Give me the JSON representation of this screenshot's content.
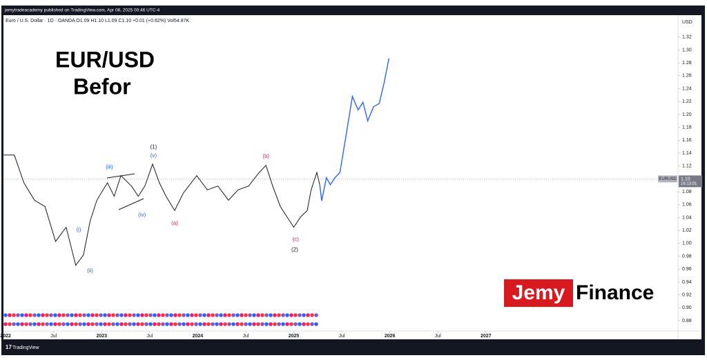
{
  "chart_data": {
    "type": "line",
    "published": "jemytradeacademy published on TradingView.com, Apr 08, 2025 00:46 UTC-4",
    "legend": "Euro / U.S. Dollar · 1D · OANDA  O1.09  H1.10  L1.09  C1.10  +0.01 (+0.62%)  Vol54.87K",
    "title": "EUR/USD",
    "subtitle": "Befor",
    "axis_unit": "USD",
    "brand": [
      "Jemy",
      "Finance"
    ],
    "footer": "TradingView",
    "last_price": {
      "value": 1.1,
      "label": "1.10"
    },
    "countdown": "16:13:01",
    "series": [
      {
        "name": "EURUSD",
        "color": "#131722",
        "x": [
          2021.98,
          2022.09,
          2022.19,
          2022.3,
          2022.41,
          2022.52,
          2022.63,
          2022.73,
          2022.81,
          2022.88,
          2022.95,
          2023.06,
          2023.13,
          2023.2,
          2023.31,
          2023.38,
          2023.45,
          2023.53,
          2023.6,
          2023.67,
          2023.76,
          2023.85,
          2023.99,
          2024.1,
          2024.21,
          2024.32,
          2024.42,
          2024.53,
          2024.64,
          2024.71,
          2024.78,
          2024.86,
          2024.93,
          2025.0,
          2025.07,
          2025.14,
          2025.18,
          2025.24,
          2025.27
        ],
        "values": [
          1.137,
          1.137,
          1.094,
          1.067,
          1.057,
          1.003,
          1.025,
          0.966,
          0.982,
          1.035,
          1.067,
          1.094,
          1.073,
          1.105,
          1.089,
          1.073,
          1.089,
          1.123,
          1.094,
          1.073,
          1.051,
          1.078,
          1.105,
          1.083,
          1.089,
          1.067,
          1.083,
          1.089,
          1.11,
          1.121,
          1.089,
          1.057,
          1.041,
          1.025,
          1.041,
          1.051,
          1.083,
          1.11,
          1.091
        ]
      },
      {
        "color": "#2962ff",
        "x": [
          2025.27,
          2025.29,
          2025.34,
          2025.38,
          2025.43,
          2025.48,
          2025.54,
          2025.61,
          2025.67,
          2025.72,
          2025.77,
          2025.83,
          2025.89,
          2025.94,
          2025.99
        ],
        "values": [
          1.091,
          1.066,
          1.102,
          1.091,
          1.102,
          1.11,
          1.164,
          1.228,
          1.207,
          1.219,
          1.19,
          1.212,
          1.217,
          1.249,
          1.287
        ]
      }
    ],
    "annotations": [
      {
        "text": "(1)",
        "x": 2023.54,
        "y": 1.149,
        "color": "#131722"
      },
      {
        "text": "(v)",
        "x": 2023.54,
        "y": 1.136,
        "color": "#2962ff"
      },
      {
        "text": "(iii)",
        "x": 2023.08,
        "y": 1.118,
        "color": "#2962ff"
      },
      {
        "text": "(iv)",
        "x": 2023.42,
        "y": 1.044,
        "color": "#2962ff"
      },
      {
        "text": "(i)",
        "x": 2022.76,
        "y": 1.021,
        "color": "#2962ff"
      },
      {
        "text": "(ii)",
        "x": 2022.88,
        "y": 0.957,
        "color": "#2962ff"
      },
      {
        "text": "(a)",
        "x": 2023.76,
        "y": 1.031,
        "color": "#e91e63"
      },
      {
        "text": "(b)",
        "x": 2024.71,
        "y": 1.135,
        "color": "#e91e63"
      },
      {
        "text": "(c)",
        "x": 2025.02,
        "y": 1.006,
        "color": "#e91e63"
      },
      {
        "text": "(2)",
        "x": 2025.01,
        "y": 0.99,
        "color": "#131722"
      }
    ],
    "xlim": [
      2021.97,
      2029.0
    ],
    "xticks": [
      2022,
      {
        "value": 2022.5,
        "label": "Jul"
      },
      2023,
      {
        "value": 2023.5,
        "label": "Jul"
      },
      2024,
      {
        "value": 2024.5,
        "label": "Jul"
      },
      2025,
      {
        "value": 2025.5,
        "label": "Jul"
      },
      2026,
      {
        "value": 2026.5,
        "label": "Jul"
      },
      2027
    ],
    "ylim": [
      0.864,
      1.354
    ],
    "yticks": [
      0.88,
      {
        "value": 0.9,
        "label": "0.90"
      },
      0.92,
      0.94,
      0.96,
      0.98,
      {
        "value": 1.0,
        "label": "1.00"
      },
      1.02,
      1.04,
      1.06,
      1.08,
      {
        "value": 1.1,
        "label": "1.10"
      },
      1.12,
      1.14,
      1.16,
      1.18,
      {
        "value": 1.2,
        "label": "1.20"
      },
      1.22,
      1.24,
      1.26,
      1.28,
      {
        "value": 1.3,
        "label": "1.30"
      },
      1.32
    ]
  }
}
